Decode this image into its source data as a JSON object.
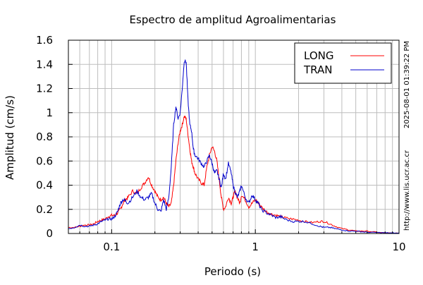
{
  "chart_data": {
    "type": "line",
    "title": "Espectro de amplitud Agroalimentarias",
    "xlabel": "Periodo (s)",
    "ylabel": "Amplitud (cm/s)",
    "x_scale": "log",
    "xlim": [
      0.05,
      10
    ],
    "ylim": [
      0,
      1.6
    ],
    "x_ticks": [
      0.1,
      1,
      10
    ],
    "x_tick_labels": [
      "0.1",
      "1",
      "10"
    ],
    "y_ticks": [
      0,
      0.2,
      0.4,
      0.6,
      0.8,
      1,
      1.2,
      1.4,
      1.6
    ],
    "y_tick_labels": [
      "0",
      "0.2",
      "0.4",
      "0.6",
      "0.8",
      "1",
      "1.2",
      "1.4",
      "1.6"
    ],
    "grid": true,
    "legend_position": "top-right",
    "side_text_timestamp": "2025-08-01 01:39:22 PM",
    "side_text_url": "http://www.lis.ucr.ac.cr",
    "series": [
      {
        "name": "LONG",
        "color": "#ff0000",
        "x": [
          0.05,
          0.055,
          0.06,
          0.065,
          0.07,
          0.075,
          0.08,
          0.085,
          0.09,
          0.095,
          0.1,
          0.105,
          0.11,
          0.115,
          0.12,
          0.125,
          0.13,
          0.14,
          0.15,
          0.16,
          0.17,
          0.18,
          0.19,
          0.2,
          0.21,
          0.22,
          0.23,
          0.24,
          0.25,
          0.26,
          0.27,
          0.28,
          0.29,
          0.3,
          0.31,
          0.32,
          0.33,
          0.34,
          0.35,
          0.36,
          0.37,
          0.38,
          0.4,
          0.42,
          0.44,
          0.46,
          0.48,
          0.5,
          0.52,
          0.54,
          0.56,
          0.58,
          0.6,
          0.62,
          0.65,
          0.68,
          0.7,
          0.72,
          0.75,
          0.78,
          0.8,
          0.85,
          0.9,
          0.95,
          1.0,
          1.05,
          1.1,
          1.2,
          1.3,
          1.4,
          1.5,
          1.6,
          1.8,
          2.0,
          2.2,
          2.5,
          2.8,
          3.0,
          3.3,
          3.6,
          4.0,
          4.5,
          5.0,
          5.5,
          6.0,
          7.0,
          8.0,
          9.0,
          10.0
        ],
        "values": [
          0.05,
          0.05,
          0.06,
          0.07,
          0.07,
          0.08,
          0.1,
          0.11,
          0.12,
          0.14,
          0.15,
          0.15,
          0.17,
          0.2,
          0.25,
          0.28,
          0.3,
          0.35,
          0.33,
          0.38,
          0.42,
          0.47,
          0.4,
          0.35,
          0.3,
          0.28,
          0.3,
          0.25,
          0.22,
          0.25,
          0.4,
          0.6,
          0.75,
          0.85,
          0.9,
          0.97,
          0.95,
          0.82,
          0.7,
          0.6,
          0.55,
          0.5,
          0.45,
          0.42,
          0.4,
          0.55,
          0.65,
          0.72,
          0.68,
          0.6,
          0.45,
          0.3,
          0.2,
          0.22,
          0.3,
          0.25,
          0.3,
          0.35,
          0.3,
          0.25,
          0.32,
          0.28,
          0.22,
          0.25,
          0.28,
          0.25,
          0.22,
          0.18,
          0.16,
          0.15,
          0.14,
          0.13,
          0.12,
          0.11,
          0.1,
          0.09,
          0.1,
          0.1,
          0.08,
          0.06,
          0.04,
          0.03,
          0.02,
          0.02,
          0.02,
          0.01,
          0.005,
          0.003,
          0.002
        ]
      },
      {
        "name": "TRAN",
        "color": "#0000cc",
        "x": [
          0.05,
          0.055,
          0.06,
          0.065,
          0.07,
          0.075,
          0.08,
          0.085,
          0.09,
          0.095,
          0.1,
          0.105,
          0.11,
          0.115,
          0.12,
          0.125,
          0.13,
          0.14,
          0.15,
          0.16,
          0.17,
          0.18,
          0.19,
          0.2,
          0.21,
          0.22,
          0.23,
          0.24,
          0.25,
          0.26,
          0.27,
          0.28,
          0.29,
          0.3,
          0.31,
          0.32,
          0.33,
          0.34,
          0.35,
          0.36,
          0.37,
          0.38,
          0.4,
          0.42,
          0.44,
          0.46,
          0.48,
          0.5,
          0.52,
          0.54,
          0.56,
          0.58,
          0.6,
          0.62,
          0.65,
          0.68,
          0.7,
          0.72,
          0.75,
          0.78,
          0.8,
          0.85,
          0.9,
          0.95,
          1.0,
          1.05,
          1.1,
          1.2,
          1.3,
          1.4,
          1.5,
          1.6,
          1.8,
          2.0,
          2.2,
          2.5,
          2.8,
          3.0,
          3.3,
          3.6,
          4.0,
          4.5,
          5.0,
          5.5,
          6.0,
          7.0,
          8.0,
          9.0,
          10.0
        ],
        "values": [
          0.04,
          0.05,
          0.07,
          0.06,
          0.06,
          0.07,
          0.08,
          0.1,
          0.11,
          0.12,
          0.12,
          0.14,
          0.18,
          0.25,
          0.28,
          0.27,
          0.25,
          0.3,
          0.35,
          0.3,
          0.28,
          0.3,
          0.33,
          0.25,
          0.2,
          0.18,
          0.28,
          0.2,
          0.3,
          0.55,
          0.9,
          1.05,
          0.95,
          1.0,
          1.2,
          1.43,
          1.42,
          1.1,
          0.9,
          0.85,
          0.7,
          0.65,
          0.62,
          0.58,
          0.55,
          0.6,
          0.65,
          0.58,
          0.5,
          0.52,
          0.45,
          0.38,
          0.5,
          0.45,
          0.58,
          0.5,
          0.4,
          0.35,
          0.3,
          0.35,
          0.4,
          0.3,
          0.25,
          0.32,
          0.28,
          0.25,
          0.2,
          0.17,
          0.15,
          0.13,
          0.14,
          0.12,
          0.1,
          0.1,
          0.1,
          0.08,
          0.06,
          0.05,
          0.05,
          0.04,
          0.03,
          0.02,
          0.02,
          0.015,
          0.01,
          0.008,
          0.006,
          0.004,
          0.003
        ]
      }
    ]
  }
}
